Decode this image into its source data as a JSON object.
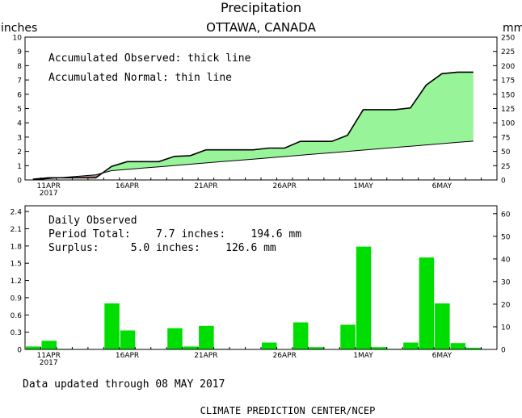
{
  "title": "Precipitation",
  "subtitle": "OTTAWA, CANADA",
  "footer": "Data updated through 08 MAY 2017",
  "credit": "CLIMATE PREDICTION CENTER/NCEP",
  "colors": {
    "surplus": "#98f498",
    "deficit": "#b08080",
    "bars": "#00dd00",
    "line": "#000000"
  },
  "chart_data": [
    {
      "type": "area",
      "name": "accumulated",
      "left_unit": "inches",
      "right_unit": "mm",
      "ylim_left": [
        0,
        10
      ],
      "ylim_right": [
        0,
        250
      ],
      "left_ticks": [
        "0",
        "1",
        "2",
        "3",
        "4",
        "5",
        "6",
        "7",
        "8",
        "9",
        "10"
      ],
      "right_ticks": [
        "0",
        "25",
        "50",
        "75",
        "100",
        "125",
        "150",
        "175",
        "200",
        "225",
        "250"
      ],
      "annotations": [
        "Accumulated Observed: thick line",
        "Accumulated Normal: thin line"
      ],
      "x_tick_labels": [
        {
          "day": 1,
          "label": "11APR",
          "sub": "2017"
        },
        {
          "day": 6,
          "label": "16APR",
          "sub": ""
        },
        {
          "day": 11,
          "label": "21APR",
          "sub": ""
        },
        {
          "day": 16,
          "label": "26APR",
          "sub": ""
        },
        {
          "day": 21,
          "label": "1MAY",
          "sub": ""
        },
        {
          "day": 26,
          "label": "6MAY",
          "sub": ""
        }
      ],
      "observed": [
        0.05,
        0.15,
        0.15,
        0.15,
        0.15,
        0.95,
        1.28,
        1.28,
        1.28,
        1.65,
        1.7,
        2.11,
        2.11,
        2.11,
        2.11,
        2.23,
        2.23,
        2.7,
        2.7,
        2.7,
        3.13,
        4.92,
        4.92,
        4.92,
        5.04,
        6.64,
        7.44,
        7.55,
        7.55
      ],
      "normal": [
        0.0,
        0.09,
        0.18,
        0.27,
        0.36,
        0.65,
        0.74,
        0.83,
        0.92,
        1.01,
        1.1,
        1.19,
        1.28,
        1.37,
        1.46,
        1.55,
        1.64,
        1.73,
        1.82,
        1.91,
        2.0,
        2.09,
        2.18,
        2.27,
        2.36,
        2.45,
        2.54,
        2.63,
        2.72
      ]
    },
    {
      "type": "bar",
      "name": "daily",
      "ylim_left": [
        0,
        2.5
      ],
      "ylim_right": [
        0,
        63.5
      ],
      "left_ticks": [
        "0",
        "0.3",
        "0.6",
        "0.9",
        "1.2",
        "1.5",
        "1.8",
        "2.1",
        "2.4"
      ],
      "right_ticks": [
        "0",
        "10",
        "20",
        "30",
        "40",
        "50",
        "60"
      ],
      "annotations": [
        "Daily Observed",
        "Period Total:    7.7 inches:    194.6 mm",
        "Surplus:     5.0 inches:    126.6 mm"
      ],
      "values": [
        0.05,
        0.15,
        0.01,
        0,
        0,
        0.8,
        0.33,
        0,
        0,
        0.37,
        0.05,
        0.41,
        0.01,
        0,
        0,
        0.12,
        0,
        0.47,
        0.04,
        0,
        0.43,
        1.79,
        0.04,
        0.01,
        0.12,
        1.6,
        0.8,
        0.11,
        0.03
      ]
    }
  ]
}
